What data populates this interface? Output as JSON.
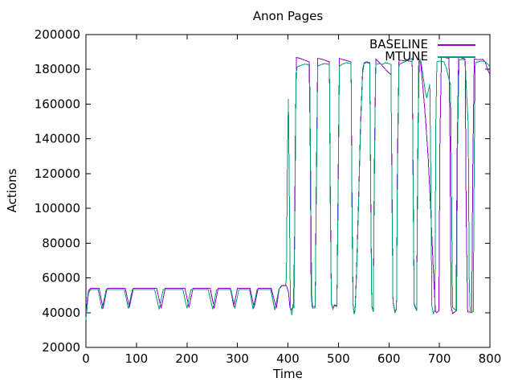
{
  "chart_data": {
    "type": "line",
    "title": "Anon Pages",
    "xlabel": "Time",
    "ylabel": "Actions",
    "xlim": [
      0,
      800
    ],
    "ylim": [
      20000,
      200000
    ],
    "x_ticks": [
      0,
      100,
      200,
      300,
      400,
      500,
      600,
      700,
      800
    ],
    "y_ticks": [
      20000,
      40000,
      60000,
      80000,
      100000,
      120000,
      140000,
      160000,
      180000,
      200000
    ],
    "grid": false,
    "legend_position": "top-right-inside",
    "axis_color": "#000000",
    "background_color": "#ffffff",
    "series": [
      {
        "name": "BASELINE",
        "color": "#9400d3",
        "points": [
          [
            0,
            40000
          ],
          [
            5,
            52500
          ],
          [
            9,
            54000
          ],
          [
            26,
            54000
          ],
          [
            34,
            42500
          ],
          [
            42,
            54000
          ],
          [
            78,
            54000
          ],
          [
            86,
            43000
          ],
          [
            94,
            54000
          ],
          [
            140,
            54000
          ],
          [
            149,
            42500
          ],
          [
            157,
            54000
          ],
          [
            196,
            54000
          ],
          [
            204,
            43000
          ],
          [
            212,
            54000
          ],
          [
            246,
            54000
          ],
          [
            254,
            42500
          ],
          [
            262,
            54000
          ],
          [
            286,
            54000
          ],
          [
            293,
            43500
          ],
          [
            300,
            54000
          ],
          [
            325,
            54000
          ],
          [
            333,
            43000
          ],
          [
            341,
            54000
          ],
          [
            367,
            54000
          ],
          [
            377,
            42500
          ],
          [
            383,
            54000
          ],
          [
            388,
            55600
          ],
          [
            397,
            55600
          ],
          [
            401,
            52000
          ],
          [
            404,
            43000
          ],
          [
            407,
            41500
          ],
          [
            411,
            44000
          ],
          [
            413,
            80000
          ],
          [
            415,
            150000
          ],
          [
            417,
            186800
          ],
          [
            424,
            186300
          ],
          [
            433,
            185300
          ],
          [
            442,
            184300
          ],
          [
            444,
            140000
          ],
          [
            446,
            51500
          ],
          [
            448,
            43500
          ],
          [
            454,
            43500
          ],
          [
            456,
            110000
          ],
          [
            459,
            186300
          ],
          [
            468,
            185800
          ],
          [
            477,
            184800
          ],
          [
            482,
            184300
          ],
          [
            484,
            110000
          ],
          [
            486,
            45500
          ],
          [
            489,
            42500
          ],
          [
            492,
            44500
          ],
          [
            497,
            44000
          ],
          [
            499,
            100000
          ],
          [
            502,
            186300
          ],
          [
            510,
            185500
          ],
          [
            519,
            184800
          ],
          [
            525,
            184300
          ],
          [
            527,
            100000
          ],
          [
            529,
            45000
          ],
          [
            531,
            39500
          ],
          [
            533,
            41500
          ],
          [
            536,
            65000
          ],
          [
            540,
            105000
          ],
          [
            544,
            150000
          ],
          [
            548,
            180000
          ],
          [
            551,
            183800
          ],
          [
            556,
            184300
          ],
          [
            562,
            183800
          ],
          [
            564,
            110000
          ],
          [
            566,
            44000
          ],
          [
            569,
            41000
          ],
          [
            571,
            120000
          ],
          [
            574,
            186000
          ],
          [
            581,
            184000
          ],
          [
            590,
            181000
          ],
          [
            598,
            178500
          ],
          [
            604,
            177000
          ],
          [
            606,
            120000
          ],
          [
            608,
            46500
          ],
          [
            612,
            40500
          ],
          [
            615,
            42500
          ],
          [
            617,
            130000
          ],
          [
            620,
            185300
          ],
          [
            629,
            185000
          ],
          [
            639,
            184800
          ],
          [
            646,
            184500
          ],
          [
            648,
            120000
          ],
          [
            650,
            45000
          ],
          [
            655,
            41500
          ],
          [
            657,
            130000
          ],
          [
            660,
            185000
          ],
          [
            663,
            183500
          ],
          [
            668,
            167500
          ],
          [
            673,
            150000
          ],
          [
            678,
            128000
          ],
          [
            683,
            98000
          ],
          [
            688,
            64000
          ],
          [
            692,
            41000
          ],
          [
            694,
            40000
          ],
          [
            699,
            41000
          ],
          [
            701,
            140000
          ],
          [
            704,
            187000
          ],
          [
            711,
            186800
          ],
          [
            719,
            186300
          ],
          [
            721,
            140000
          ],
          [
            723,
            44000
          ],
          [
            726,
            39500
          ],
          [
            733,
            41000
          ],
          [
            735,
            130000
          ],
          [
            738,
            187000
          ],
          [
            745,
            186500
          ],
          [
            751,
            186000
          ],
          [
            753,
            100000
          ],
          [
            756,
            40500
          ],
          [
            764,
            40000
          ],
          [
            766,
            120000
          ],
          [
            769,
            186000
          ],
          [
            778,
            185500
          ],
          [
            786,
            185800
          ],
          [
            791,
            184000
          ],
          [
            796,
            179500
          ],
          [
            800,
            177000
          ]
        ]
      },
      {
        "name": "MTUNE",
        "color": "#009e73",
        "points": [
          [
            0,
            36000
          ],
          [
            5,
            51000
          ],
          [
            9,
            53300
          ],
          [
            24,
            53300
          ],
          [
            32,
            42000
          ],
          [
            40,
            53300
          ],
          [
            76,
            53300
          ],
          [
            84,
            42500
          ],
          [
            92,
            53300
          ],
          [
            136,
            53300
          ],
          [
            145,
            42000
          ],
          [
            153,
            53300
          ],
          [
            192,
            53300
          ],
          [
            200,
            42500
          ],
          [
            208,
            53300
          ],
          [
            242,
            53300
          ],
          [
            251,
            42000
          ],
          [
            259,
            53300
          ],
          [
            287,
            53300
          ],
          [
            295,
            42500
          ],
          [
            303,
            53300
          ],
          [
            324,
            53300
          ],
          [
            331,
            42000
          ],
          [
            339,
            53300
          ],
          [
            366,
            53300
          ],
          [
            374,
            41500
          ],
          [
            382,
            53300
          ],
          [
            388,
            55300
          ],
          [
            395,
            55300
          ],
          [
            397,
            60000
          ],
          [
            399,
            130000
          ],
          [
            401,
            163000
          ],
          [
            403,
            100000
          ],
          [
            405,
            42000
          ],
          [
            408,
            38500
          ],
          [
            410,
            45000
          ],
          [
            412,
            42500
          ],
          [
            414,
            100000
          ],
          [
            416,
            178000
          ],
          [
            419,
            181500
          ],
          [
            426,
            182300
          ],
          [
            434,
            183000
          ],
          [
            443,
            182500
          ],
          [
            445,
            120000
          ],
          [
            447,
            50500
          ],
          [
            449,
            42500
          ],
          [
            454,
            43000
          ],
          [
            456,
            100000
          ],
          [
            459,
            181800
          ],
          [
            466,
            182800
          ],
          [
            473,
            183300
          ],
          [
            482,
            182800
          ],
          [
            484,
            100000
          ],
          [
            486,
            45000
          ],
          [
            489,
            42000
          ],
          [
            492,
            44000
          ],
          [
            497,
            43500
          ],
          [
            499,
            90000
          ],
          [
            502,
            181800
          ],
          [
            508,
            183000
          ],
          [
            516,
            183800
          ],
          [
            525,
            183300
          ],
          [
            527,
            90000
          ],
          [
            529,
            44500
          ],
          [
            531,
            39000
          ],
          [
            533,
            41000
          ],
          [
            536,
            62000
          ],
          [
            540,
            102000
          ],
          [
            544,
            147000
          ],
          [
            548,
            178000
          ],
          [
            551,
            183300
          ],
          [
            556,
            184000
          ],
          [
            562,
            183300
          ],
          [
            564,
            105000
          ],
          [
            566,
            43500
          ],
          [
            569,
            40500
          ],
          [
            571,
            110000
          ],
          [
            574,
            182800
          ],
          [
            581,
            183300
          ],
          [
            587,
            182800
          ],
          [
            593,
            183800
          ],
          [
            599,
            183300
          ],
          [
            604,
            182800
          ],
          [
            606,
            110000
          ],
          [
            608,
            46000
          ],
          [
            612,
            40000
          ],
          [
            615,
            42000
          ],
          [
            617,
            120000
          ],
          [
            620,
            182800
          ],
          [
            627,
            183800
          ],
          [
            635,
            184800
          ],
          [
            642,
            185800
          ],
          [
            646,
            186300
          ],
          [
            648,
            110000
          ],
          [
            650,
            44500
          ],
          [
            655,
            41000
          ],
          [
            657,
            120000
          ],
          [
            659,
            184300
          ],
          [
            662,
            185800
          ],
          [
            664,
            184000
          ],
          [
            668,
            175500
          ],
          [
            672,
            167500
          ],
          [
            675,
            163500
          ],
          [
            678,
            167500
          ],
          [
            681,
            171500
          ],
          [
            683,
            120000
          ],
          [
            685,
            44000
          ],
          [
            688,
            39500
          ],
          [
            691,
            41500
          ],
          [
            693,
            150000
          ],
          [
            695,
            184300
          ],
          [
            701,
            184800
          ],
          [
            709,
            184300
          ],
          [
            714,
            180500
          ],
          [
            718,
            175500
          ],
          [
            722,
            171000
          ],
          [
            724,
            110000
          ],
          [
            726,
            43000
          ],
          [
            734,
            41000
          ],
          [
            736,
            140000
          ],
          [
            739,
            185300
          ],
          [
            745,
            185800
          ],
          [
            751,
            185300
          ],
          [
            754,
            165000
          ],
          [
            757,
            148000
          ],
          [
            759,
            60000
          ],
          [
            761,
            40000
          ],
          [
            767,
            40500
          ],
          [
            769,
            130000
          ],
          [
            771,
            183800
          ],
          [
            777,
            184300
          ],
          [
            784,
            184800
          ],
          [
            791,
            184300
          ],
          [
            796,
            183000
          ],
          [
            800,
            181500
          ]
        ]
      }
    ]
  }
}
